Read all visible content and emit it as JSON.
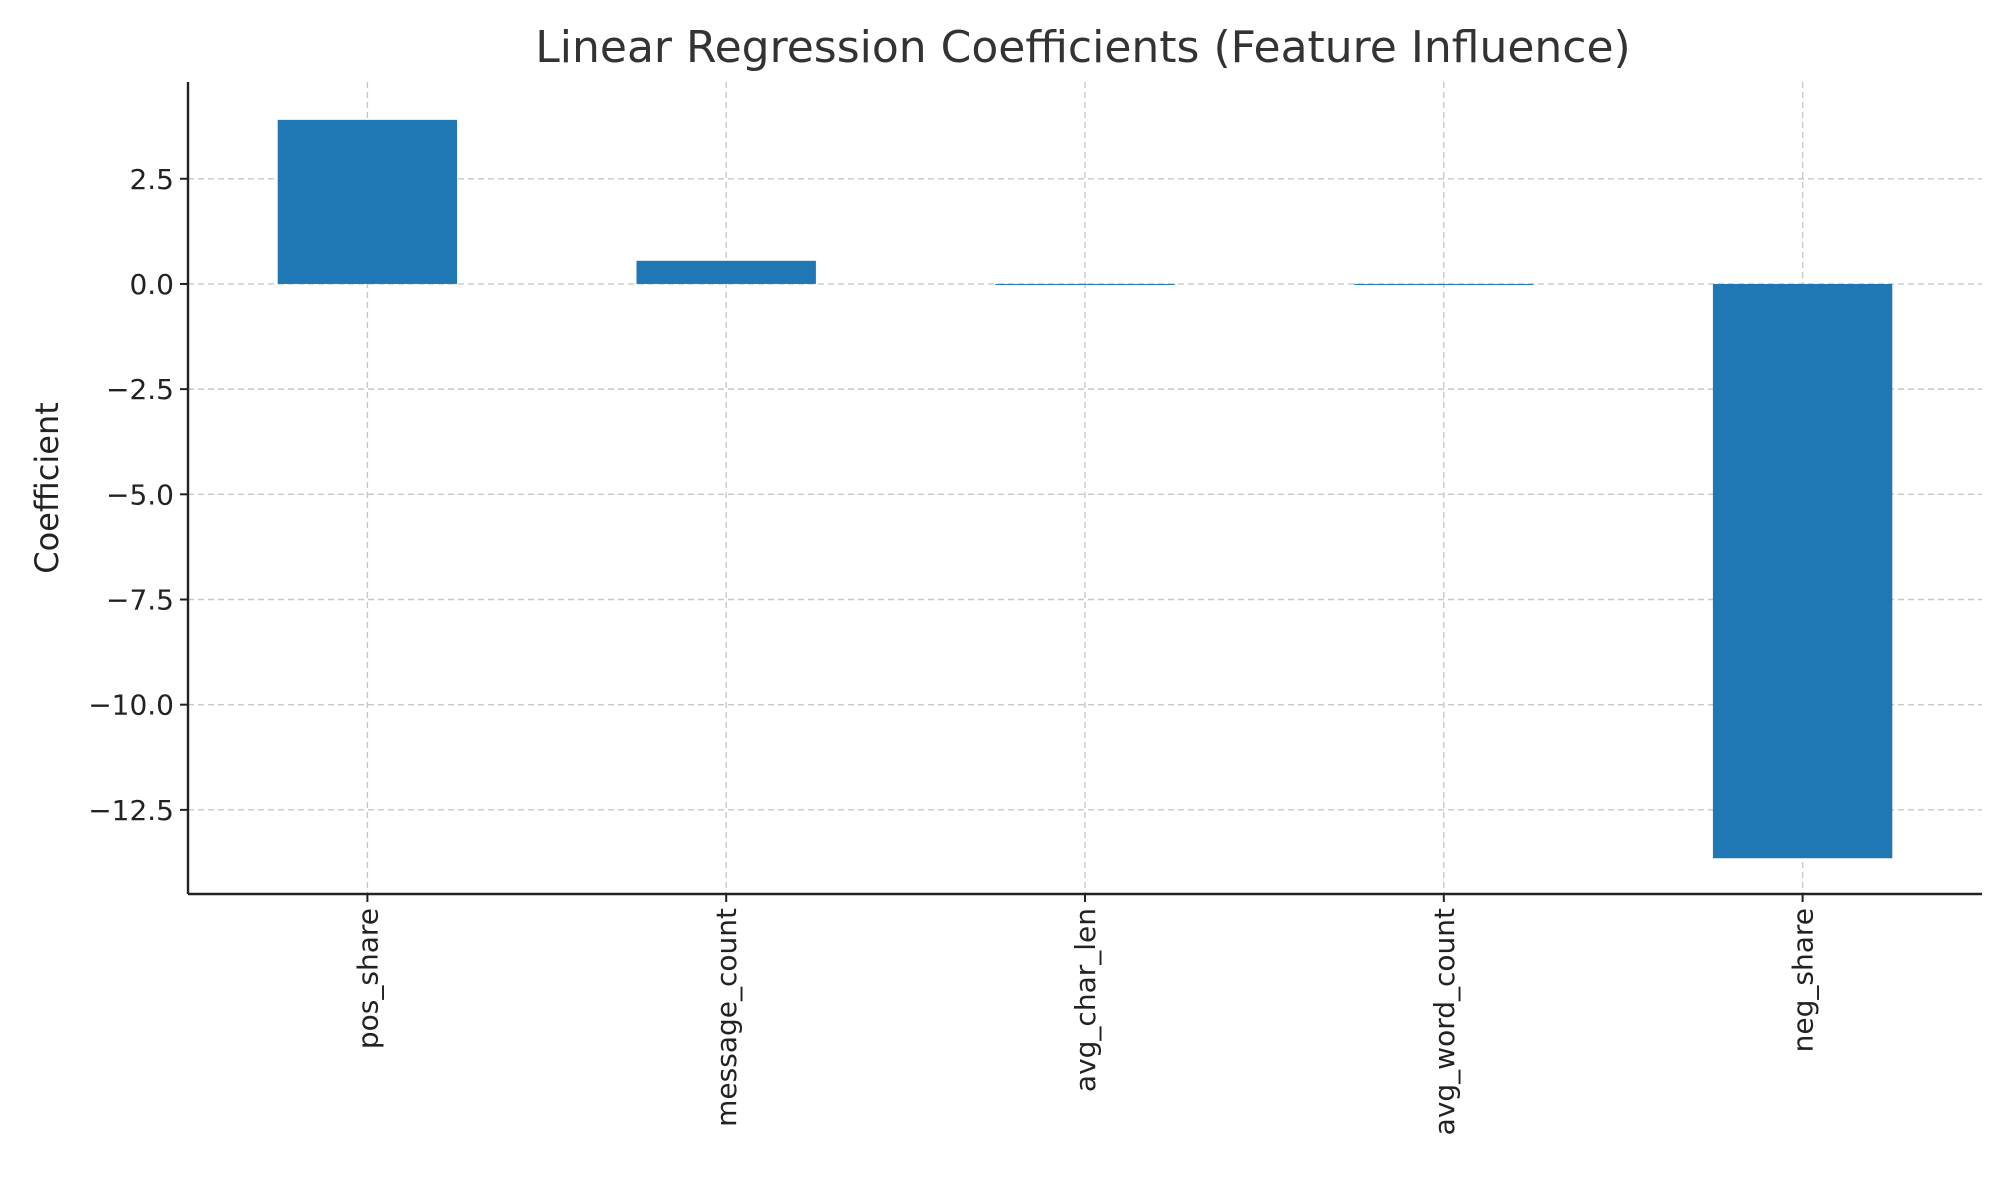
{
  "chart_data": {
    "type": "bar",
    "title": "Linear Regression Coefficients (Feature Influence)",
    "xlabel": "",
    "ylabel": "Coefficient",
    "categories": [
      "pos_share",
      "message_count",
      "avg_char_len",
      "avg_word_count",
      "neg_share"
    ],
    "values": [
      3.9,
      0.55,
      0.0,
      -0.02,
      -13.65
    ],
    "ylim": [
      -14.5,
      4.8
    ],
    "yticks": [
      2.5,
      0.0,
      -2.5,
      -5.0,
      -7.5,
      -10.0,
      -12.5
    ],
    "ytick_labels": [
      "2.5",
      "0.0",
      "−2.5",
      "−5.0",
      "−7.5",
      "−10.0",
      "−12.5"
    ],
    "grid": true,
    "bar_color": "#1f77b4",
    "x_tick_rotation": "vertical"
  }
}
